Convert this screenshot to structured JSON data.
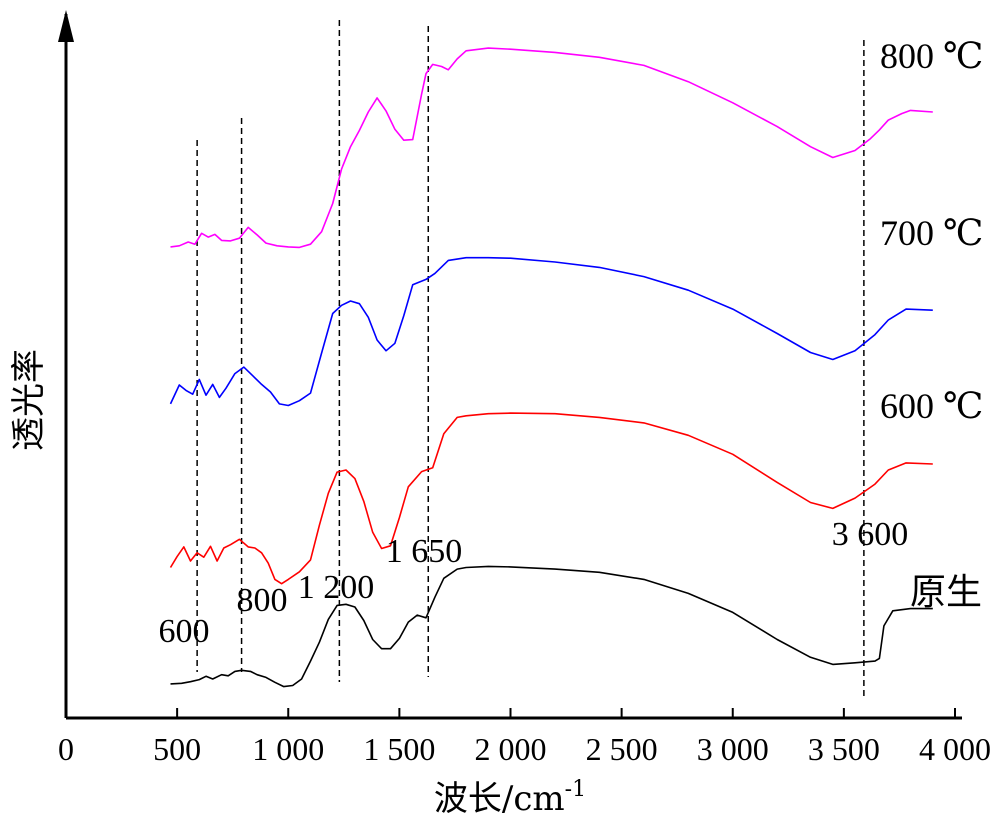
{
  "chart_data": {
    "type": "line",
    "xlabel": "波长/cm",
    "xlabel_sup": "-1",
    "ylabel": "透光率",
    "xlim": [
      0,
      4000
    ],
    "xticks": [
      {
        "value": 0,
        "label": "0"
      },
      {
        "value": 500,
        "label": "500"
      },
      {
        "value": 1000,
        "label": "1 000"
      },
      {
        "value": 1500,
        "label": "1 500"
      },
      {
        "value": 2000,
        "label": "2 000"
      },
      {
        "value": 2500,
        "label": "2 500"
      },
      {
        "value": 3000,
        "label": "3 000"
      },
      {
        "value": 3500,
        "label": "3 500"
      },
      {
        "value": 4000,
        "label": "4 000"
      }
    ],
    "reference_lines": [
      {
        "x": 590,
        "label": "600"
      },
      {
        "x": 790,
        "label": "800"
      },
      {
        "x": 1230,
        "label": "1 200"
      },
      {
        "x": 1630,
        "label": "1 650"
      },
      {
        "x": 3590,
        "label": "3 600"
      }
    ],
    "series": [
      {
        "name": "原生",
        "color": "#000000",
        "points": [
          [
            470,
            0.13
          ],
          [
            520,
            0.14
          ],
          [
            560,
            0.17
          ],
          [
            600,
            0.21
          ],
          [
            630,
            0.27
          ],
          [
            660,
            0.22
          ],
          [
            700,
            0.3
          ],
          [
            730,
            0.28
          ],
          [
            760,
            0.36
          ],
          [
            790,
            0.38
          ],
          [
            830,
            0.36
          ],
          [
            860,
            0.3
          ],
          [
            900,
            0.25
          ],
          [
            940,
            0.16
          ],
          [
            980,
            0.08
          ],
          [
            1020,
            0.1
          ],
          [
            1060,
            0.22
          ],
          [
            1100,
            0.55
          ],
          [
            1140,
            0.9
          ],
          [
            1180,
            1.32
          ],
          [
            1220,
            1.58
          ],
          [
            1260,
            1.6
          ],
          [
            1300,
            1.55
          ],
          [
            1340,
            1.3
          ],
          [
            1380,
            0.95
          ],
          [
            1420,
            0.78
          ],
          [
            1460,
            0.78
          ],
          [
            1500,
            0.97
          ],
          [
            1540,
            1.27
          ],
          [
            1580,
            1.4
          ],
          [
            1620,
            1.35
          ],
          [
            1660,
            1.73
          ],
          [
            1700,
            2.08
          ],
          [
            1760,
            2.25
          ],
          [
            1800,
            2.28
          ],
          [
            1900,
            2.3
          ],
          [
            2000,
            2.29
          ],
          [
            2200,
            2.25
          ],
          [
            2400,
            2.19
          ],
          [
            2600,
            2.06
          ],
          [
            2800,
            1.8
          ],
          [
            3000,
            1.45
          ],
          [
            3200,
            0.95
          ],
          [
            3350,
            0.62
          ],
          [
            3450,
            0.49
          ],
          [
            3550,
            0.52
          ],
          [
            3640,
            0.55
          ],
          [
            3660,
            0.6
          ],
          [
            3680,
            1.2
          ],
          [
            3720,
            1.48
          ],
          [
            3800,
            1.52
          ],
          [
            3900,
            1.52
          ]
        ]
      },
      {
        "name": "600 ℃",
        "color": "#ff0000",
        "points": [
          [
            470,
            2.28
          ],
          [
            500,
            2.48
          ],
          [
            530,
            2.66
          ],
          [
            560,
            2.4
          ],
          [
            590,
            2.55
          ],
          [
            620,
            2.47
          ],
          [
            650,
            2.67
          ],
          [
            680,
            2.4
          ],
          [
            710,
            2.64
          ],
          [
            740,
            2.7
          ],
          [
            780,
            2.8
          ],
          [
            820,
            2.66
          ],
          [
            850,
            2.64
          ],
          [
            880,
            2.55
          ],
          [
            910,
            2.36
          ],
          [
            940,
            2.06
          ],
          [
            970,
            1.98
          ],
          [
            1000,
            2.06
          ],
          [
            1050,
            2.2
          ],
          [
            1100,
            2.42
          ],
          [
            1140,
            3.06
          ],
          [
            1180,
            3.65
          ],
          [
            1220,
            4.04
          ],
          [
            1260,
            4.08
          ],
          [
            1300,
            3.92
          ],
          [
            1340,
            3.5
          ],
          [
            1380,
            2.93
          ],
          [
            1420,
            2.63
          ],
          [
            1460,
            2.68
          ],
          [
            1500,
            3.2
          ],
          [
            1540,
            3.77
          ],
          [
            1600,
            4.05
          ],
          [
            1650,
            4.12
          ],
          [
            1700,
            4.75
          ],
          [
            1760,
            5.05
          ],
          [
            1800,
            5.08
          ],
          [
            1900,
            5.12
          ],
          [
            2000,
            5.13
          ],
          [
            2200,
            5.12
          ],
          [
            2400,
            5.05
          ],
          [
            2600,
            4.95
          ],
          [
            2800,
            4.72
          ],
          [
            3000,
            4.37
          ],
          [
            3200,
            3.85
          ],
          [
            3350,
            3.48
          ],
          [
            3450,
            3.37
          ],
          [
            3550,
            3.56
          ],
          [
            3640,
            3.82
          ],
          [
            3700,
            4.08
          ],
          [
            3780,
            4.21
          ],
          [
            3900,
            4.19
          ]
        ]
      },
      {
        "name": "700 ℃",
        "color": "#0000ff",
        "points": [
          [
            470,
            5.3
          ],
          [
            510,
            5.65
          ],
          [
            540,
            5.55
          ],
          [
            570,
            5.48
          ],
          [
            600,
            5.75
          ],
          [
            630,
            5.46
          ],
          [
            660,
            5.66
          ],
          [
            690,
            5.42
          ],
          [
            720,
            5.59
          ],
          [
            760,
            5.86
          ],
          [
            800,
            5.98
          ],
          [
            840,
            5.82
          ],
          [
            880,
            5.66
          ],
          [
            920,
            5.52
          ],
          [
            960,
            5.3
          ],
          [
            1000,
            5.27
          ],
          [
            1050,
            5.36
          ],
          [
            1100,
            5.5
          ],
          [
            1150,
            6.24
          ],
          [
            1200,
            6.97
          ],
          [
            1240,
            7.12
          ],
          [
            1280,
            7.2
          ],
          [
            1320,
            7.15
          ],
          [
            1360,
            6.9
          ],
          [
            1400,
            6.48
          ],
          [
            1440,
            6.28
          ],
          [
            1480,
            6.42
          ],
          [
            1520,
            6.93
          ],
          [
            1560,
            7.5
          ],
          [
            1620,
            7.6
          ],
          [
            1660,
            7.71
          ],
          [
            1720,
            7.95
          ],
          [
            1800,
            8.0
          ],
          [
            1900,
            8.0
          ],
          [
            2000,
            7.99
          ],
          [
            2200,
            7.92
          ],
          [
            2400,
            7.82
          ],
          [
            2600,
            7.65
          ],
          [
            2800,
            7.4
          ],
          [
            3000,
            7.05
          ],
          [
            3200,
            6.6
          ],
          [
            3350,
            6.25
          ],
          [
            3450,
            6.12
          ],
          [
            3550,
            6.28
          ],
          [
            3640,
            6.58
          ],
          [
            3700,
            6.85
          ],
          [
            3780,
            7.05
          ],
          [
            3900,
            7.03
          ]
        ]
      },
      {
        "name": "800 ℃",
        "color": "#ff00ff",
        "points": [
          [
            470,
            8.2
          ],
          [
            510,
            8.22
          ],
          [
            550,
            8.29
          ],
          [
            580,
            8.25
          ],
          [
            610,
            8.45
          ],
          [
            640,
            8.38
          ],
          [
            670,
            8.43
          ],
          [
            700,
            8.32
          ],
          [
            740,
            8.31
          ],
          [
            780,
            8.36
          ],
          [
            820,
            8.56
          ],
          [
            860,
            8.42
          ],
          [
            900,
            8.27
          ],
          [
            950,
            8.22
          ],
          [
            1000,
            8.2
          ],
          [
            1050,
            8.19
          ],
          [
            1100,
            8.25
          ],
          [
            1150,
            8.48
          ],
          [
            1200,
            9.0
          ],
          [
            1240,
            9.64
          ],
          [
            1280,
            10.05
          ],
          [
            1320,
            10.35
          ],
          [
            1360,
            10.69
          ],
          [
            1400,
            10.95
          ],
          [
            1440,
            10.71
          ],
          [
            1480,
            10.37
          ],
          [
            1520,
            10.17
          ],
          [
            1560,
            10.18
          ],
          [
            1600,
            11.02
          ],
          [
            1620,
            11.4
          ],
          [
            1650,
            11.57
          ],
          [
            1690,
            11.53
          ],
          [
            1720,
            11.47
          ],
          [
            1760,
            11.67
          ],
          [
            1800,
            11.82
          ],
          [
            1900,
            11.87
          ],
          [
            2000,
            11.85
          ],
          [
            2200,
            11.79
          ],
          [
            2400,
            11.7
          ],
          [
            2600,
            11.55
          ],
          [
            2800,
            11.25
          ],
          [
            3000,
            10.86
          ],
          [
            3200,
            10.42
          ],
          [
            3350,
            10.05
          ],
          [
            3450,
            9.85
          ],
          [
            3550,
            9.98
          ],
          [
            3620,
            10.2
          ],
          [
            3660,
            10.36
          ],
          [
            3700,
            10.54
          ],
          [
            3760,
            10.66
          ],
          [
            3800,
            10.72
          ],
          [
            3900,
            10.69
          ]
        ]
      }
    ]
  }
}
